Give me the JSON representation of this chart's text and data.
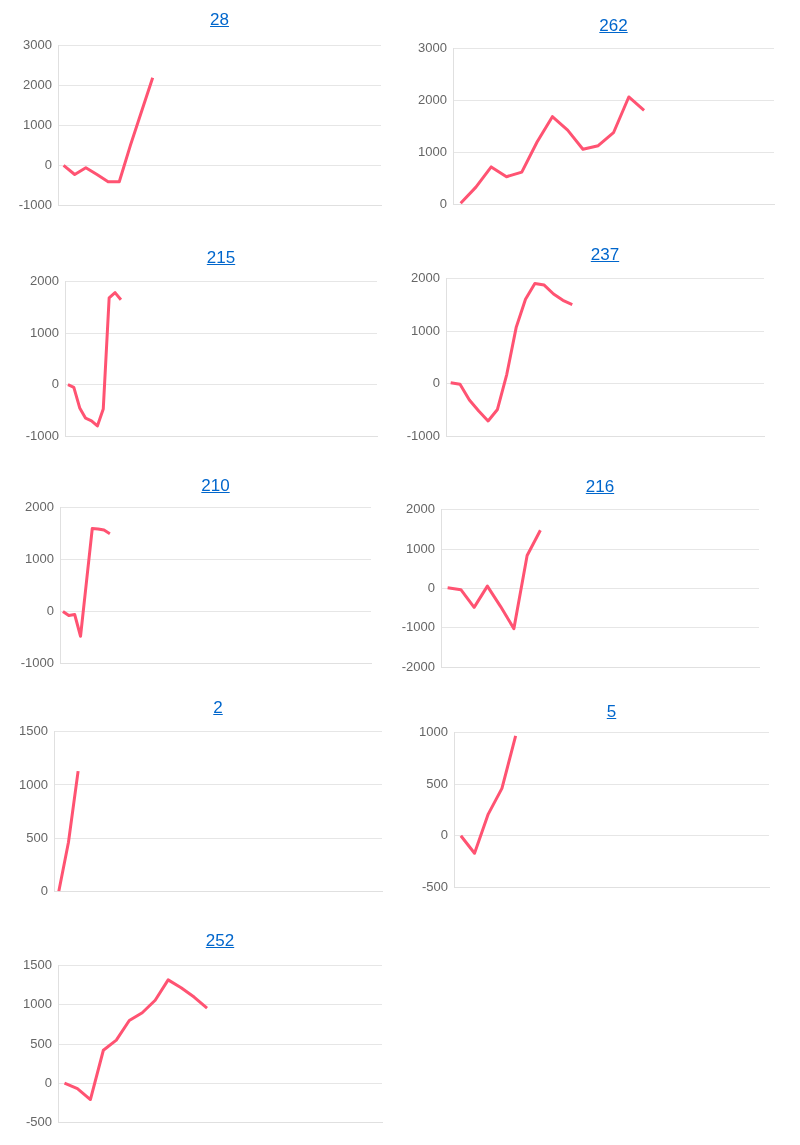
{
  "chart_data": [
    {
      "type": "line",
      "title": "28",
      "categories": [
        null,
        null,
        null,
        null,
        null,
        null,
        null,
        null,
        null,
        null,
        null,
        null,
        null,
        null,
        null,
        null,
        null,
        null,
        null,
        null,
        null,
        null,
        null,
        null,
        null,
        null,
        null,
        null,
        null
      ],
      "series": [
        {
          "color": "#ff5372",
          "values": [
            0,
            -230,
            -60,
            -230,
            -410,
            -410,
            500,
            1350,
            2200,
            null,
            null,
            null,
            null,
            null,
            null,
            null,
            null,
            null,
            null,
            null,
            null,
            null,
            null,
            null,
            null,
            null,
            null,
            null,
            null
          ]
        }
      ],
      "ylim": [
        -1000,
        3000
      ],
      "yticks": [
        -1000,
        0,
        1000,
        2000,
        3000
      ],
      "grid": "y",
      "tick_labels": "y",
      "legend": false
    },
    {
      "type": "line",
      "title": "262",
      "categories": [
        null,
        null,
        null,
        null,
        null,
        null,
        null,
        null,
        null,
        null,
        null,
        null,
        null,
        null,
        null,
        null,
        null,
        null,
        null,
        null,
        null
      ],
      "series": [
        {
          "color": "#ff5372",
          "values": [
            20,
            330,
            720,
            530,
            620,
            1200,
            1690,
            1430,
            1060,
            1130,
            1380,
            2070,
            1810,
            null,
            null,
            null,
            null,
            null,
            null,
            null,
            null
          ]
        }
      ],
      "ylim": [
        0,
        3000
      ],
      "yticks": [
        0,
        1000,
        2000,
        3000
      ],
      "grid": "y",
      "tick_labels": "y",
      "legend": false
    },
    {
      "type": "line",
      "title": "215",
      "categories": [
        null,
        null,
        null,
        null,
        null,
        null,
        null,
        null,
        null,
        null,
        null,
        null,
        null,
        null,
        null,
        null,
        null,
        null,
        null,
        null,
        null,
        null,
        null,
        null,
        null,
        null,
        null,
        null,
        null,
        null,
        null,
        null,
        null,
        null,
        null,
        null,
        null,
        null,
        null,
        null,
        null,
        null,
        null,
        null,
        null,
        null,
        null,
        null,
        null,
        null,
        null,
        null,
        null
      ],
      "series": [
        {
          "color": "#ff5372",
          "values": [
            0,
            -50,
            -450,
            -650,
            -700,
            -800,
            -470,
            1690,
            1790,
            1650,
            null,
            null,
            null,
            null,
            null,
            null,
            null,
            null,
            null,
            null,
            null,
            null,
            null,
            null,
            null,
            null,
            null,
            null,
            null,
            null,
            null,
            null,
            null,
            null,
            null,
            null,
            null,
            null,
            null,
            null,
            null,
            null,
            null,
            null,
            null,
            null,
            null,
            null,
            null,
            null,
            null,
            null,
            null
          ]
        }
      ],
      "ylim": [
        -1000,
        2000
      ],
      "yticks": [
        -1000,
        0,
        1000,
        2000
      ],
      "grid": "y",
      "tick_labels": "y",
      "legend": false
    },
    {
      "type": "line",
      "title": "237",
      "categories": [
        null,
        null,
        null,
        null,
        null,
        null,
        null,
        null,
        null,
        null,
        null,
        null,
        null,
        null,
        null,
        null,
        null,
        null,
        null,
        null,
        null,
        null,
        null,
        null,
        null,
        null,
        null,
        null,
        null,
        null,
        null,
        null,
        null,
        null
      ],
      "series": [
        {
          "color": "#ff5372",
          "values": [
            20,
            -10,
            -310,
            -520,
            -710,
            -490,
            180,
            1070,
            1610,
            1910,
            1880,
            1710,
            1590,
            1510,
            null,
            null,
            null,
            null,
            null,
            null,
            null,
            null,
            null,
            null,
            null,
            null,
            null,
            null,
            null,
            null,
            null,
            null,
            null,
            null
          ]
        }
      ],
      "ylim": [
        -1000,
        2000
      ],
      "yticks": [
        -1000,
        0,
        1000,
        2000
      ],
      "grid": "y",
      "tick_labels": "y",
      "legend": false
    },
    {
      "type": "line",
      "title": "210",
      "categories": [
        null,
        null,
        null,
        null,
        null,
        null,
        null,
        null,
        null,
        null,
        null,
        null,
        null,
        null,
        null,
        null,
        null,
        null,
        null,
        null,
        null,
        null,
        null,
        null,
        null,
        null,
        null,
        null,
        null,
        null,
        null,
        null,
        null,
        null,
        null,
        null,
        null,
        null,
        null,
        null,
        null,
        null,
        null,
        null,
        null,
        null,
        null,
        null,
        null,
        null,
        null,
        null,
        null
      ],
      "series": [
        {
          "color": "#ff5372",
          "values": [
            0,
            -80,
            -60,
            -480,
            560,
            1600,
            1590,
            1570,
            1500,
            null,
            null,
            null,
            null,
            null,
            null,
            null,
            null,
            null,
            null,
            null,
            null,
            null,
            null,
            null,
            null,
            null,
            null,
            null,
            null,
            null,
            null,
            null,
            null,
            null,
            null,
            null,
            null,
            null,
            null,
            null,
            null,
            null,
            null,
            null,
            null,
            null,
            null,
            null,
            null,
            null,
            null,
            null,
            null
          ]
        }
      ],
      "ylim": [
        -1000,
        2000
      ],
      "yticks": [
        -1000,
        0,
        1000,
        2000
      ],
      "grid": "y",
      "tick_labels": "y",
      "legend": false
    },
    {
      "type": "line",
      "title": "216",
      "categories": [
        null,
        null,
        null,
        null,
        null,
        null,
        null,
        null,
        null,
        null,
        null,
        null,
        null,
        null,
        null,
        null,
        null,
        null,
        null,
        null,
        null,
        null,
        null,
        null
      ],
      "series": [
        {
          "color": "#ff5372",
          "values": [
            20,
            -30,
            -480,
            60,
            -460,
            -1020,
            840,
            1480,
            null,
            null,
            null,
            null,
            null,
            null,
            null,
            null,
            null,
            null,
            null,
            null,
            null,
            null,
            null,
            null
          ]
        }
      ],
      "ylim": [
        -2000,
        2000
      ],
      "yticks": [
        -2000,
        -1000,
        0,
        1000,
        2000
      ],
      "grid": "y",
      "tick_labels": "y",
      "legend": false
    },
    {
      "type": "line",
      "title": "2",
      "categories": [
        null,
        null,
        null,
        null,
        null,
        null,
        null,
        null,
        null,
        null,
        null,
        null,
        null,
        null,
        null,
        null,
        null,
        null,
        null,
        null,
        null,
        null,
        null,
        null,
        null,
        null,
        null,
        null,
        null,
        null,
        null,
        null,
        null,
        null
      ],
      "series": [
        {
          "color": "#ff5372",
          "values": [
            0,
            460,
            1130,
            null,
            null,
            null,
            null,
            null,
            null,
            null,
            null,
            null,
            null,
            null,
            null,
            null,
            null,
            null,
            null,
            null,
            null,
            null,
            null,
            null,
            null,
            null,
            null,
            null,
            null,
            null,
            null,
            null,
            null,
            null
          ]
        }
      ],
      "ylim": [
        0,
        1500
      ],
      "yticks": [
        0,
        500,
        1000,
        1500
      ],
      "grid": "y",
      "tick_labels": "y",
      "legend": false
    },
    {
      "type": "line",
      "title": "5",
      "categories": [
        null,
        null,
        null,
        null,
        null,
        null,
        null,
        null,
        null,
        null,
        null,
        null,
        null,
        null,
        null,
        null,
        null,
        null,
        null,
        null,
        null,
        null,
        null
      ],
      "series": [
        {
          "color": "#ff5372",
          "values": [
            0,
            -170,
            210,
            460,
            970,
            null,
            null,
            null,
            null,
            null,
            null,
            null,
            null,
            null,
            null,
            null,
            null,
            null,
            null,
            null,
            null,
            null,
            null
          ]
        }
      ],
      "ylim": [
        -500,
        1000
      ],
      "yticks": [
        -500,
        0,
        500,
        1000
      ],
      "grid": "y",
      "tick_labels": "y",
      "legend": false
    },
    {
      "type": "line",
      "title": "252",
      "categories": [
        null,
        null,
        null,
        null,
        null,
        null,
        null,
        null,
        null,
        null,
        null,
        null,
        null,
        null,
        null,
        null,
        null,
        null,
        null,
        null,
        null,
        null,
        null,
        null,
        null
      ],
      "series": [
        {
          "color": "#ff5372",
          "values": [
            0,
            -70,
            -210,
            420,
            550,
            800,
            900,
            1060,
            1320,
            1220,
            1100,
            960,
            null,
            null,
            null,
            null,
            null,
            null,
            null,
            null,
            null,
            null,
            null,
            null,
            null
          ]
        }
      ],
      "ylim": [
        -500,
        1500
      ],
      "yticks": [
        -500,
        0,
        500,
        1000,
        1500
      ],
      "grid": "y",
      "tick_labels": "y",
      "legend": false
    }
  ]
}
